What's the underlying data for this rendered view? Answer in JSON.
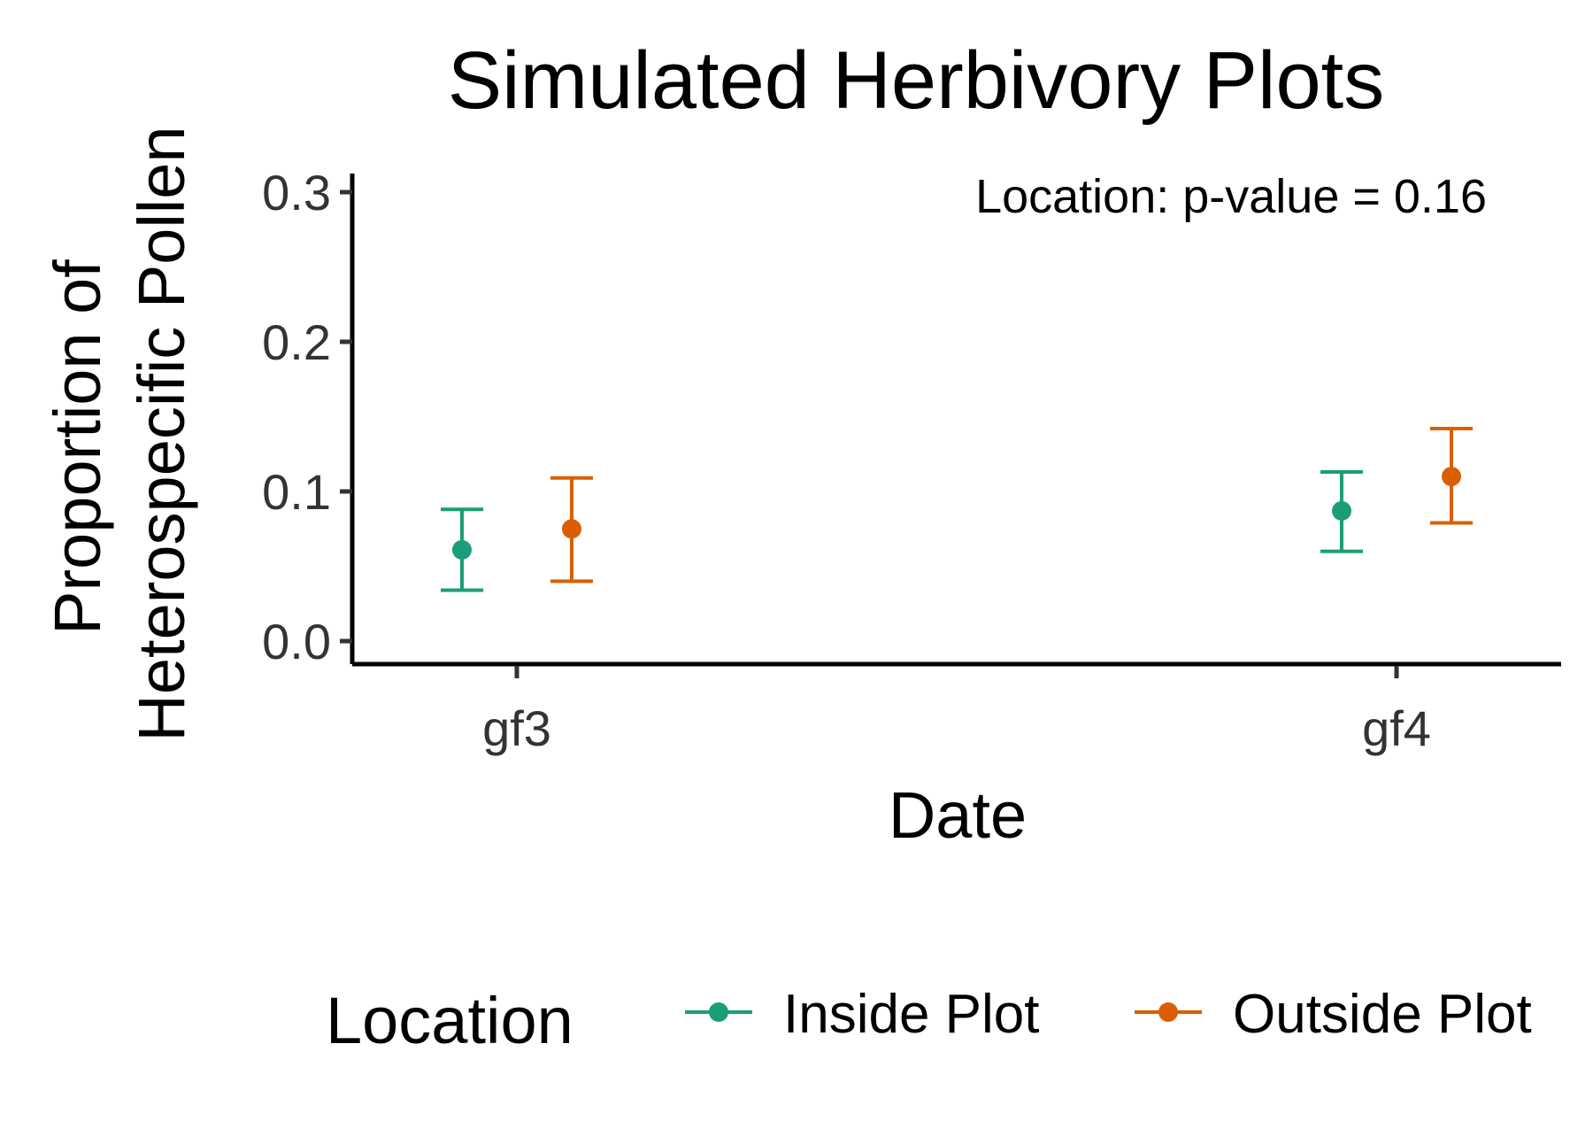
{
  "chart_data": {
    "type": "scatter",
    "title": "Simulated Herbivory Plots",
    "xlabel": "Date",
    "ylabel_lines": [
      "Proportion of",
      "Heterospecific Pollen"
    ],
    "categories": [
      "gf3",
      "gf4"
    ],
    "yticks": [
      "0.0",
      "0.1",
      "0.2",
      "0.3"
    ],
    "ylim": [
      0,
      0.3
    ],
    "annotation": "Location: p-value = 0.16",
    "legend": {
      "title": "Location",
      "position": "bottom"
    },
    "grid": false,
    "series": [
      {
        "name": "Inside Plot",
        "color": "#1b9e77",
        "values": [
          0.061,
          0.087
        ],
        "lower": [
          0.034,
          0.06
        ],
        "upper": [
          0.088,
          0.113
        ]
      },
      {
        "name": "Outside Plot",
        "color": "#d95f02",
        "values": [
          0.075,
          0.11
        ],
        "lower": [
          0.04,
          0.079
        ],
        "upper": [
          0.109,
          0.142
        ]
      }
    ]
  }
}
